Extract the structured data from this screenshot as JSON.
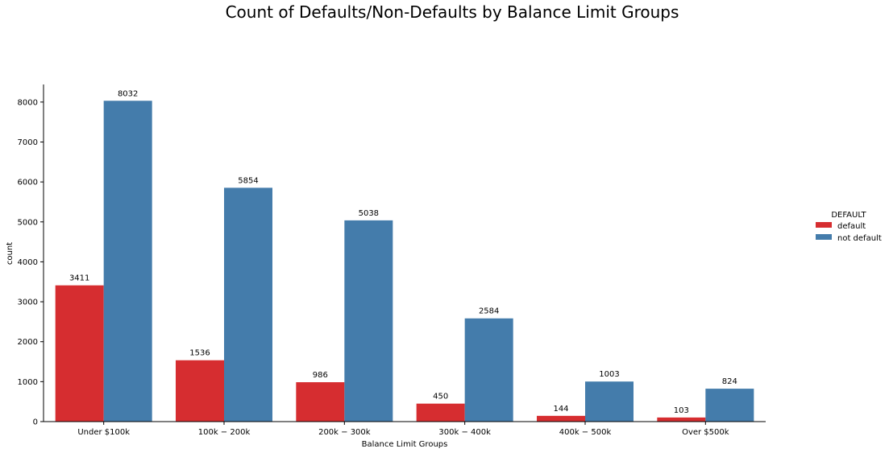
{
  "chart_data": {
    "type": "bar",
    "title": "Count of Defaults/Non-Defaults by Balance Limit Groups",
    "xlabel": "Balance Limit Groups",
    "ylabel": "count",
    "categories": [
      "Under $100k",
      "$100k-$200k",
      "$200k-$300k",
      "$300k-$400k",
      "$400k-$500k",
      "Over $500k"
    ],
    "category_labels": [
      "Under $100k",
      "100k − 200k",
      "200k − 300k",
      "300k − 400k",
      "400k − 500k",
      "Over $500k"
    ],
    "series": [
      {
        "name": "default",
        "color": "#d62d30",
        "values": [
          3411,
          1536,
          986,
          450,
          144,
          103
        ]
      },
      {
        "name": "not default",
        "color": "#447cab",
        "values": [
          8032,
          5854,
          5038,
          2584,
          1003,
          824
        ]
      }
    ],
    "data_labels": [
      [
        "3411",
        "1536",
        "986",
        "450",
        "144",
        "103"
      ],
      [
        "8032",
        "5854",
        "5038",
        "2584",
        "1003",
        "824"
      ]
    ],
    "ylim": [
      0,
      8440
    ],
    "yticks": [
      0,
      1000,
      2000,
      3000,
      4000,
      5000,
      6000,
      7000,
      8000
    ],
    "ytick_labels": [
      "0",
      "1000",
      "2000",
      "3000",
      "4000",
      "5000",
      "6000",
      "7000",
      "8000"
    ],
    "legend": {
      "title": "DEFAULT",
      "position": "right"
    },
    "grid": false
  }
}
